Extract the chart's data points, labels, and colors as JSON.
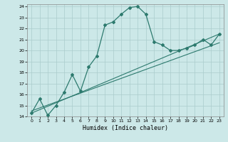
{
  "xlabel": "Humidex (Indice chaleur)",
  "ylabel": "",
  "bg_color": "#cce8e8",
  "grid_color": "#aacccc",
  "line_color": "#2d7a6e",
  "xlim": [
    -0.5,
    23.5
  ],
  "ylim": [
    14,
    24.2
  ],
  "xticks": [
    0,
    1,
    2,
    3,
    4,
    5,
    6,
    7,
    8,
    9,
    10,
    11,
    12,
    13,
    14,
    15,
    16,
    17,
    18,
    19,
    20,
    21,
    22,
    23
  ],
  "yticks": [
    14,
    15,
    16,
    17,
    18,
    19,
    20,
    21,
    22,
    23,
    24
  ],
  "curve1_x": [
    0,
    1,
    2,
    3,
    4,
    5,
    6,
    7,
    8,
    9,
    10,
    11,
    12,
    13,
    14,
    15,
    16,
    17,
    18,
    19,
    20,
    21,
    22,
    23
  ],
  "curve1_y": [
    14.3,
    15.6,
    14.1,
    15.0,
    16.2,
    17.8,
    16.3,
    18.5,
    19.5,
    22.3,
    22.6,
    23.3,
    23.9,
    24.0,
    23.3,
    20.8,
    20.5,
    20.0,
    20.0,
    20.2,
    20.5,
    21.0,
    20.5,
    21.5
  ],
  "line2_x": [
    0,
    23
  ],
  "line2_y": [
    14.3,
    21.5
  ],
  "line3_x": [
    0,
    23
  ],
  "line3_y": [
    14.5,
    20.7
  ]
}
